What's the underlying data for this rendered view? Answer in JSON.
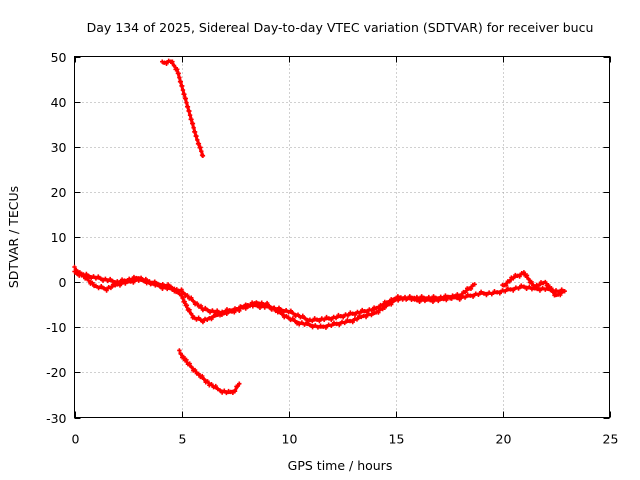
{
  "chart_data": {
    "type": "scatter",
    "title": "Day 134 of 2025, Sidereal Day-to-day VTEC variation (SDTVAR) for receiver bucu",
    "xlabel": "GPS time / hours",
    "ylabel": "SDTVAR / TECUs",
    "xlim": [
      0,
      25
    ],
    "ylim": [
      -30,
      50
    ],
    "xticks": [
      0,
      5,
      10,
      15,
      20,
      25
    ],
    "yticks": [
      -30,
      -20,
      -10,
      0,
      10,
      20,
      30,
      40,
      50
    ],
    "xtick_labels": [
      "0",
      "5",
      "10",
      "15",
      "20",
      "25"
    ],
    "ytick_labels": [
      "-30",
      "-20",
      "-10",
      "0",
      "10",
      "20",
      "30",
      "40",
      "50"
    ],
    "grid": true,
    "marker": "+",
    "color": "#ff0000",
    "series": [
      {
        "name": "main-trace",
        "x": [
          0,
          0.5,
          1,
          1.5,
          2,
          2.5,
          3,
          3.5,
          4,
          4.5,
          5,
          5.3,
          5.6,
          6,
          6.3,
          6.6,
          7,
          7.5,
          8,
          8.5,
          9,
          9.5,
          10,
          10.5,
          11,
          11.5,
          12,
          12.5,
          13,
          13.5,
          14,
          14.5,
          15,
          15.5,
          16,
          16.5,
          17,
          17.5,
          18,
          18.5,
          19,
          19.5,
          20,
          20.5,
          21,
          21.5,
          22,
          22.5,
          22.9
        ],
        "y": [
          3,
          1,
          -1,
          -1.5,
          -0.5,
          0,
          0.5,
          0,
          -0.5,
          -1,
          -3,
          -6,
          -8,
          -8.5,
          -8,
          -7.5,
          -6.5,
          -6,
          -5.5,
          -4.5,
          -5,
          -6.5,
          -8,
          -9,
          -9.5,
          -10,
          -9.5,
          -9,
          -8.5,
          -7.5,
          -7,
          -5.5,
          -4,
          -3.5,
          -4,
          -4,
          -4,
          -3.5,
          -3.5,
          -3,
          -2.5,
          -2.5,
          -2,
          -1.5,
          -1,
          -1.5,
          -1.5,
          -2,
          -2
        ]
      },
      {
        "name": "secondary-trace",
        "x": [
          0,
          1,
          2,
          3,
          4,
          5,
          6,
          7,
          7.7,
          8,
          9,
          10,
          11,
          12,
          13,
          14,
          15,
          16,
          17,
          18,
          18.7
        ],
        "y": [
          2,
          1,
          0,
          1,
          -1,
          -2,
          -6,
          -7,
          -6,
          -5,
          -5.5,
          -6.5,
          -8.5,
          -8,
          -7,
          -6,
          -3.5,
          -3.5,
          -3.5,
          -3,
          -0.5
        ]
      },
      {
        "name": "late-trace",
        "x": [
          20,
          20.5,
          21,
          21.5,
          22,
          22.5,
          22.9
        ],
        "y": [
          -1,
          1,
          2,
          -1,
          0,
          -3,
          -2
        ]
      },
      {
        "name": "upper-branch",
        "x": [
          4.1,
          4.5,
          4.8,
          5.1,
          5.4,
          5.7,
          6.0
        ],
        "y": [
          48.5,
          49,
          47,
          42,
          37,
          32,
          28
        ]
      },
      {
        "name": "lower-branch",
        "x": [
          4.9,
          5.3,
          5.8,
          6.3,
          6.8,
          7.2,
          7.5,
          7.7
        ],
        "y": [
          -15.5,
          -18,
          -20.5,
          -22.5,
          -24,
          -24.5,
          -24,
          -22.5
        ]
      }
    ]
  }
}
